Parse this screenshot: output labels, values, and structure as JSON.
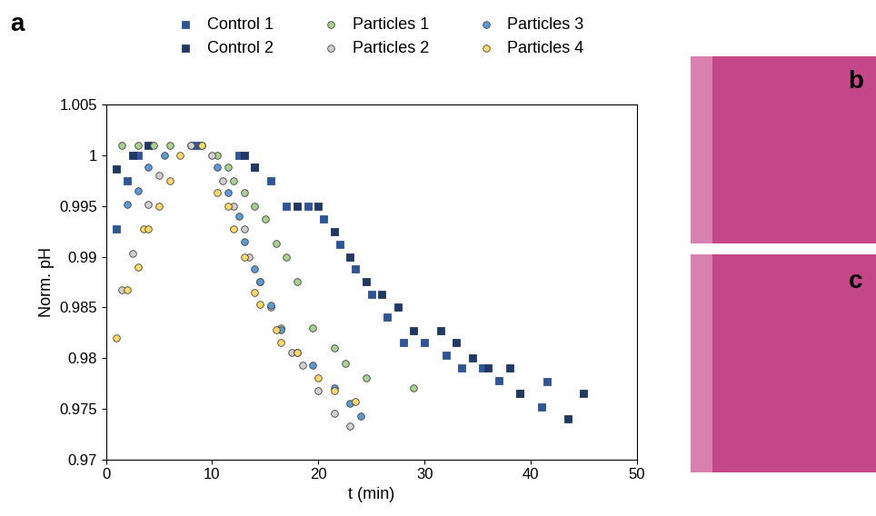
{
  "chart_data": {
    "type": "scatter",
    "panel_label": "a",
    "x_label": "t (min)",
    "y_label": "Norm. pH",
    "xlim": [
      0,
      50
    ],
    "xticks": [
      0,
      10,
      20,
      30,
      40,
      50
    ],
    "ylim": [
      0.97,
      1.005
    ],
    "yticks": [
      0.97,
      0.975,
      0.98,
      0.985,
      0.99,
      0.995,
      1,
      1.005
    ],
    "grid": false,
    "legend": "upper center",
    "series": [
      {
        "name": "Control 1",
        "color": "#2e5597",
        "marker": "square",
        "x": [
          1,
          2,
          3,
          8.5,
          12.5,
          14,
          15.5,
          17,
          19,
          20.5,
          22,
          23.5,
          25,
          26.5,
          28,
          30,
          32,
          33.5,
          35.5,
          37,
          39,
          41,
          41.5
        ],
        "values": [
          0.9927,
          0.9975,
          1.0,
          1.001,
          1.0,
          0.9988,
          0.9975,
          0.995,
          0.995,
          0.9937,
          0.9912,
          0.9888,
          0.9863,
          0.984,
          0.9815,
          0.9815,
          0.9803,
          0.979,
          0.979,
          0.9778,
          0.9765,
          0.9752,
          0.9777
        ]
      },
      {
        "name": "Control 2",
        "color": "#1f3864",
        "marker": "square",
        "x": [
          1,
          2.5,
          4,
          13,
          14,
          18,
          20,
          21.5,
          23,
          24.5,
          26,
          27.5,
          29,
          31.5,
          33,
          34.5,
          36,
          38,
          39,
          43.5,
          45
        ],
        "values": [
          0.9987,
          1.0,
          1.001,
          1.0,
          0.9988,
          0.995,
          0.995,
          0.9925,
          0.99,
          0.9875,
          0.9863,
          0.985,
          0.9827,
          0.9827,
          0.9815,
          0.98,
          0.979,
          0.979,
          0.9765,
          0.974,
          0.9765
        ]
      },
      {
        "name": "Particles 1",
        "color": "#a9d18e",
        "marker": "circle",
        "x": [
          1.5,
          3,
          4.5,
          6,
          8,
          10.5,
          11.5,
          12,
          13,
          14,
          15,
          16,
          17,
          18,
          19.5,
          21.5,
          22.5,
          24.5,
          29
        ],
        "values": [
          1.001,
          1.001,
          1.001,
          1.001,
          1.001,
          1.0,
          0.9988,
          0.9975,
          0.9963,
          0.995,
          0.9937,
          0.9913,
          0.99,
          0.9875,
          0.983,
          0.981,
          0.9795,
          0.978,
          0.977
        ]
      },
      {
        "name": "Particles 2",
        "color": "#d0cece",
        "marker": "circle",
        "x": [
          1.5,
          2.5,
          4,
          5,
          8,
          10,
          11,
          12,
          13,
          13.5,
          14.5,
          15.5,
          16.5,
          17.5,
          18.5,
          20,
          21.5,
          23
        ],
        "values": [
          0.9867,
          0.9903,
          0.9952,
          0.998,
          1.001,
          1.0,
          0.9975,
          0.995,
          0.9927,
          0.99,
          0.9875,
          0.985,
          0.983,
          0.9805,
          0.9793,
          0.9768,
          0.9745,
          0.9733
        ]
      },
      {
        "name": "Particles 3",
        "color": "#5b9bd5",
        "marker": "circle",
        "x": [
          2,
          3,
          4,
          5.5,
          9,
          10.5,
          11.5,
          12.5,
          13,
          14,
          14.5,
          15.5,
          16.5,
          18,
          19.5,
          21.5,
          23,
          24
        ],
        "values": [
          0.9952,
          0.9965,
          0.9988,
          1.0,
          1.001,
          0.9988,
          0.9963,
          0.994,
          0.9915,
          0.9888,
          0.9875,
          0.9852,
          0.9828,
          0.9805,
          0.9793,
          0.977,
          0.9755,
          0.9743
        ]
      },
      {
        "name": "Particles 4",
        "color": "#ffd966",
        "marker": "circle",
        "x": [
          1,
          2,
          3,
          3.5,
          4,
          5,
          6,
          7,
          9,
          10.5,
          11.5,
          12,
          13,
          14,
          14.5,
          16,
          16.5,
          18,
          20,
          21.5,
          23.5
        ],
        "values": [
          0.982,
          0.9867,
          0.989,
          0.9927,
          0.9927,
          0.995,
          0.9975,
          1.0,
          1.001,
          0.9963,
          0.995,
          0.9927,
          0.99,
          0.9865,
          0.9853,
          0.9828,
          0.9815,
          0.9805,
          0.978,
          0.9768,
          0.9757
        ]
      }
    ]
  },
  "images": [
    {
      "label": "b"
    },
    {
      "label": "c"
    }
  ]
}
